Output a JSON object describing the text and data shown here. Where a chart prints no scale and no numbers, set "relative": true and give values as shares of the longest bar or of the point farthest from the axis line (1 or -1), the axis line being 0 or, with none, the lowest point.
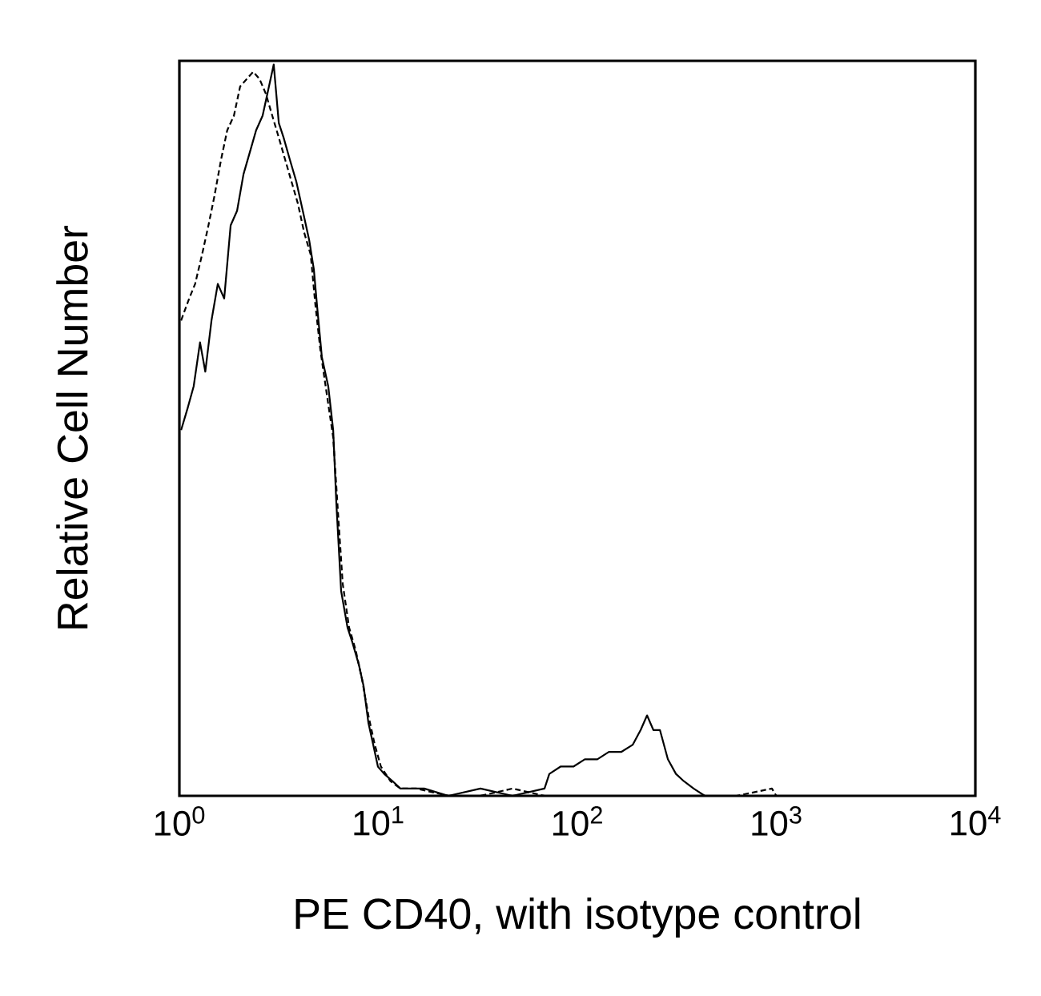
{
  "chart_data": {
    "type": "line",
    "relative": true,
    "log": "x",
    "xlabel": "PE CD40, with isotype control",
    "ylabel": "Relative Cell Number",
    "xlim": [
      1,
      10000
    ],
    "xticks": [
      {
        "value": 1,
        "label": "10$^{0}$"
      },
      {
        "value": 10,
        "label": "10$^{1}$"
      },
      {
        "value": 100,
        "label": "10$^{2}$"
      },
      {
        "value": 1000,
        "label": "10$^{3}$"
      },
      {
        "value": 10000,
        "label": "10$^{4}$"
      }
    ],
    "tick_labels": "x",
    "series": [
      {
        "color": "#000000",
        "line_style": "solid",
        "x": [
          1.02,
          1.1,
          1.18,
          1.27,
          1.35,
          1.45,
          1.56,
          1.68,
          1.81,
          1.95,
          2.1,
          2.26,
          2.43,
          2.62,
          2.82,
          2.98,
          3.16,
          3.34,
          3.59,
          3.87,
          4.17,
          4.49,
          4.74,
          4.92,
          5.2,
          5.6,
          5.93,
          6.15,
          6.5,
          7.0,
          7.4,
          7.97,
          8.43,
          8.91,
          9.42,
          9.95,
          10.7,
          11.8,
          12.9,
          14.2,
          17.0,
          22.5,
          32.6,
          47.2,
          68.4,
          72.3,
          82.3,
          95.5,
          109,
          126,
          144,
          166,
          190,
          208,
          224,
          241,
          260,
          285,
          313,
          343,
          384,
          437
        ],
        "values": [
          0.5,
          0.53,
          0.56,
          0.62,
          0.58,
          0.65,
          0.7,
          0.68,
          0.78,
          0.8,
          0.85,
          0.88,
          0.91,
          0.93,
          0.97,
          1.0,
          0.92,
          0.9,
          0.87,
          0.84,
          0.8,
          0.76,
          0.72,
          0.67,
          0.6,
          0.56,
          0.5,
          0.4,
          0.28,
          0.23,
          0.21,
          0.18,
          0.15,
          0.1,
          0.07,
          0.04,
          0.03,
          0.02,
          0.01,
          0.01,
          0.01,
          0.0,
          0.01,
          0.0,
          0.01,
          0.03,
          0.04,
          0.04,
          0.05,
          0.05,
          0.06,
          0.06,
          0.07,
          0.09,
          0.11,
          0.09,
          0.09,
          0.05,
          0.03,
          0.02,
          0.01,
          0.0
        ]
      },
      {
        "color": "#000000",
        "line_style": "dashed",
        "x": [
          1.02,
          1.12,
          1.2,
          1.3,
          1.4,
          1.5,
          1.62,
          1.74,
          1.88,
          2.02,
          2.18,
          2.35,
          2.53,
          2.72,
          2.93,
          3.16,
          3.4,
          3.66,
          3.94,
          4.24,
          4.57,
          4.83,
          5.11,
          5.5,
          5.93,
          6.26,
          6.62,
          7.13,
          7.68,
          8.27,
          8.91,
          9.59,
          10.3,
          11.5,
          12.9,
          15.5,
          22.5,
          32.6,
          47.2,
          68.4,
          99.1,
          144,
          208,
          301,
          437,
          632,
          950,
          1000
        ],
        "values": [
          0.65,
          0.68,
          0.7,
          0.74,
          0.78,
          0.82,
          0.87,
          0.91,
          0.93,
          0.97,
          0.98,
          0.99,
          0.98,
          0.96,
          0.93,
          0.9,
          0.87,
          0.84,
          0.81,
          0.77,
          0.74,
          0.67,
          0.61,
          0.55,
          0.49,
          0.39,
          0.29,
          0.23,
          0.2,
          0.16,
          0.11,
          0.07,
          0.04,
          0.02,
          0.01,
          0.01,
          0.0,
          0.0,
          0.01,
          0.0,
          0.0,
          0.0,
          0.0,
          0.0,
          0.0,
          0.0,
          0.01,
          0.0
        ]
      }
    ]
  }
}
